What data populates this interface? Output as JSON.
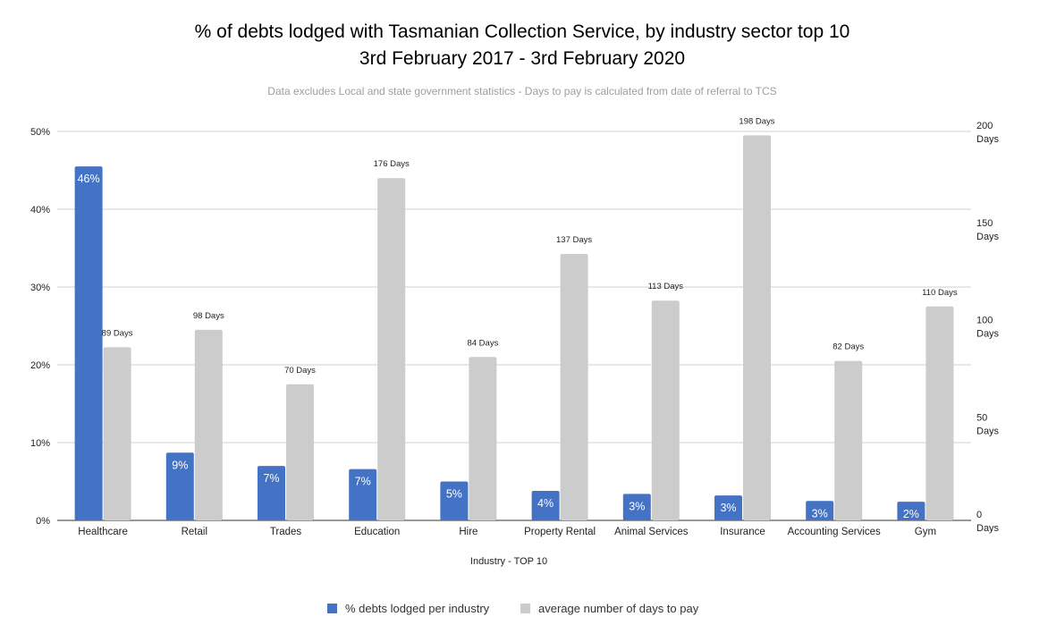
{
  "chart_data": {
    "type": "bar",
    "title_line1": "% of debts lodged with Tasmanian Collection Service, by industry sector top 10",
    "title_line2": "3rd February 2017 - 3rd February 2020",
    "subtitle": "Data excludes Local and state government statistics - Days to pay is calculated from date of referral to TCS",
    "xlabel": "Industry - TOP 10",
    "categories": [
      "Healthcare",
      "Retail",
      "Trades",
      "Education",
      "Hire",
      "Property Rental",
      "Animal Services",
      "Insurance",
      "Accounting Services",
      "Gym"
    ],
    "series": [
      {
        "name": "% debts lodged per industry",
        "axis": "left",
        "color": "#4472c4",
        "values": [
          45.5,
          8.7,
          7.0,
          6.6,
          5.0,
          3.8,
          3.4,
          3.2,
          2.5,
          2.4
        ],
        "labels": [
          "46%",
          "9%",
          "7%",
          "7%",
          "5%",
          "4%",
          "3%",
          "3%",
          "3%",
          "2%"
        ]
      },
      {
        "name": "average number of days to pay",
        "axis": "right",
        "color": "#cccccc",
        "values": [
          89,
          98,
          70,
          176,
          84,
          137,
          113,
          198,
          82,
          110
        ],
        "labels": [
          "89 Days",
          "98 Days",
          "70 Days",
          "176 Days",
          "84 Days",
          "137 Days",
          "113 Days",
          "198 Days",
          "82 Days",
          "110 Days"
        ]
      }
    ],
    "left_axis": {
      "min": 0,
      "max": 50,
      "ticks": [
        0,
        10,
        20,
        30,
        40,
        50
      ],
      "tick_labels": [
        "0%",
        "10%",
        "20%",
        "30%",
        "40%",
        "50%"
      ]
    },
    "right_axis": {
      "min": 0,
      "max": 200,
      "ticks": [
        0,
        50,
        100,
        150,
        200
      ],
      "tick_labels": [
        [
          "0",
          "Days"
        ],
        [
          "50",
          "Days"
        ],
        [
          "100",
          "Days"
        ],
        [
          "150",
          "Days"
        ],
        [
          "200",
          "Days"
        ]
      ]
    },
    "grid": true,
    "legend": "bottom"
  }
}
